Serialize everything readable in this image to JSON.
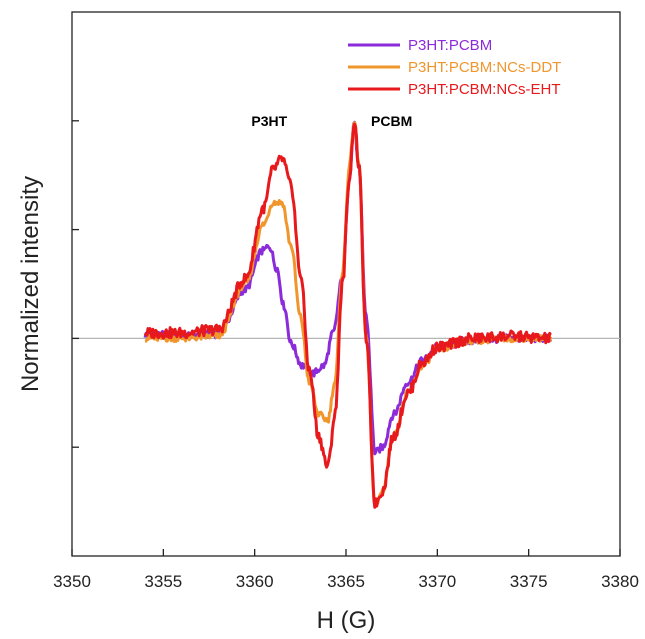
{
  "chart_data": {
    "type": "line",
    "xlabel": "H (G)",
    "ylabel": "Normalized intensity",
    "xlim": [
      3350,
      3380
    ],
    "xticks": [
      3350,
      3355,
      3360,
      3365,
      3370,
      3375,
      3380
    ],
    "ylim": [
      -2,
      3
    ],
    "yticks": [
      -1,
      0,
      1,
      2
    ],
    "zero_line": true,
    "legend": "top-right",
    "annotations": [
      {
        "text": "P3HT",
        "x": 3360.8,
        "y": 1.95
      },
      {
        "text": "PCBM",
        "x": 3367.5,
        "y": 1.95
      }
    ],
    "series": [
      {
        "name": "P3HT:PCBM",
        "color": "#8B2BD9",
        "x": [
          3354.0,
          3356.0,
          3358.0,
          3359.5,
          3360.4,
          3360.8,
          3361.2,
          3361.6,
          3362.0,
          3362.6,
          3363.2,
          3363.8,
          3364.3,
          3364.8,
          3365.2,
          3365.45,
          3365.7,
          3366.1,
          3366.6,
          3367.0,
          3367.6,
          3368.4,
          3369.2,
          3370.0,
          3372.0,
          3374.0,
          3376.2
        ],
        "y": [
          0.03,
          0.03,
          0.04,
          0.45,
          0.8,
          0.85,
          0.65,
          0.3,
          -0.05,
          -0.25,
          -0.32,
          -0.25,
          0.05,
          0.55,
          1.5,
          2.0,
          1.55,
          0.2,
          -1.05,
          -1.0,
          -0.7,
          -0.4,
          -0.2,
          -0.08,
          -0.02,
          0.0,
          0.0
        ]
      },
      {
        "name": "P3HT:PCBM:NCs-DDT",
        "color": "#F0962D",
        "x": [
          3354.0,
          3356.0,
          3358.0,
          3359.5,
          3360.5,
          3361.0,
          3361.5,
          3362.0,
          3362.5,
          3363.0,
          3363.5,
          3364.0,
          3364.4,
          3364.8,
          3365.2,
          3365.45,
          3365.7,
          3366.1,
          3366.6,
          3367.0,
          3367.6,
          3368.4,
          3369.2,
          3370.0,
          3372.0,
          3374.0,
          3376.2
        ],
        "y": [
          0.0,
          0.0,
          0.02,
          0.5,
          1.05,
          1.25,
          1.25,
          0.85,
          0.2,
          -0.4,
          -0.7,
          -0.75,
          -0.4,
          0.6,
          1.6,
          2.0,
          1.6,
          0.0,
          -1.55,
          -1.4,
          -0.9,
          -0.5,
          -0.25,
          -0.1,
          -0.02,
          0.0,
          0.0
        ]
      },
      {
        "name": "P3HT:PCBM:NCs-EHT",
        "color": "#E8191C",
        "x": [
          3354.0,
          3356.0,
          3358.0,
          3359.5,
          3360.5,
          3361.0,
          3361.5,
          3362.0,
          3362.5,
          3363.0,
          3363.5,
          3364.0,
          3364.4,
          3364.8,
          3365.2,
          3365.45,
          3365.7,
          3366.1,
          3366.6,
          3367.0,
          3367.6,
          3368.4,
          3369.2,
          3370.0,
          3372.0,
          3374.0,
          3376.2
        ],
        "y": [
          0.05,
          0.05,
          0.08,
          0.55,
          1.2,
          1.55,
          1.65,
          1.4,
          0.6,
          -0.3,
          -0.9,
          -1.18,
          -0.7,
          0.5,
          1.5,
          2.0,
          1.6,
          0.0,
          -1.52,
          -1.4,
          -0.9,
          -0.5,
          -0.22,
          -0.08,
          0.0,
          0.02,
          0.0
        ]
      }
    ]
  }
}
